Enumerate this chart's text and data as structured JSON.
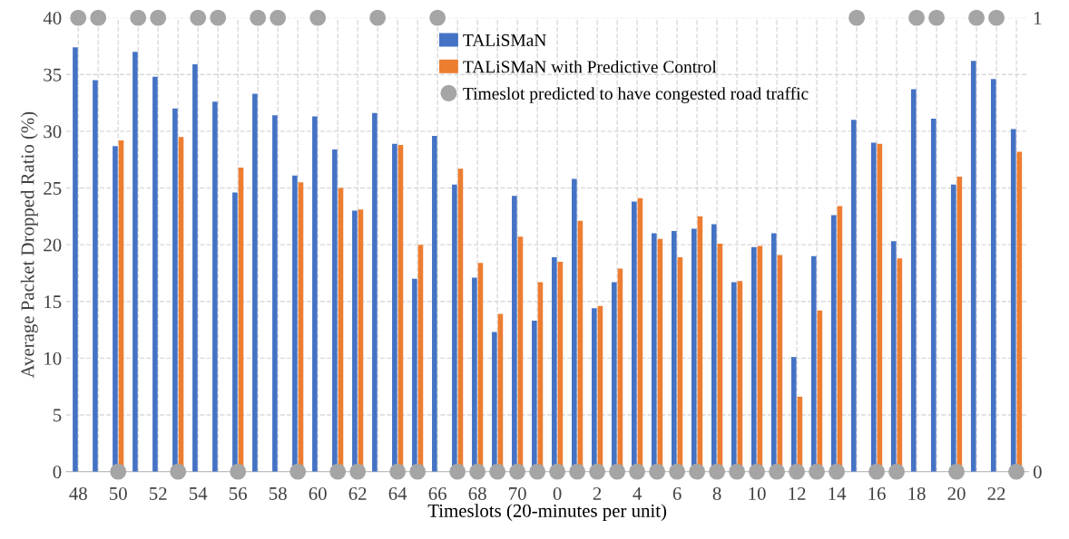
{
  "chart_data": {
    "type": "bar",
    "xlabel": "Timeslots (20-minutes per unit)",
    "ylabel": "Average Packet Dropped Ratio (%)",
    "categories": [
      "48",
      null,
      "50",
      null,
      "52",
      null,
      "54",
      null,
      "56",
      null,
      "58",
      null,
      "60",
      null,
      "62",
      null,
      "64",
      null,
      "66",
      null,
      "68",
      null,
      "70",
      null,
      "0",
      null,
      "2",
      null,
      "4",
      null,
      "6",
      null,
      "8",
      null,
      "10",
      null,
      "12",
      null,
      "14",
      null,
      "16",
      null,
      "18",
      null,
      "20",
      null,
      "22",
      null
    ],
    "series": [
      {
        "name": "TALiSMaN",
        "color": "#4472c4",
        "values": [
          37.4,
          34.5,
          28.7,
          37.0,
          34.8,
          32.0,
          35.9,
          32.6,
          24.6,
          33.3,
          31.4,
          26.1,
          31.3,
          28.4,
          23.0,
          31.6,
          28.9,
          17.0,
          29.6,
          25.3,
          17.1,
          12.3,
          24.3,
          13.3,
          18.9,
          25.8,
          14.4,
          16.7,
          23.8,
          21.0,
          21.2,
          21.4,
          21.8,
          16.7,
          19.8,
          21.0,
          10.1,
          19.0,
          22.6,
          31.0,
          29.0,
          20.3,
          33.7,
          31.1,
          25.3,
          36.2,
          34.6,
          30.2
        ]
      },
      {
        "name": "TALiSMaN with Predictive Control",
        "color": "#ed7d31",
        "values": [
          null,
          null,
          29.2,
          null,
          null,
          29.5,
          null,
          null,
          26.8,
          null,
          null,
          25.5,
          null,
          25.0,
          23.1,
          null,
          28.8,
          20.0,
          null,
          26.7,
          18.4,
          13.9,
          20.7,
          16.7,
          18.5,
          22.1,
          14.6,
          17.9,
          24.1,
          20.5,
          18.9,
          22.5,
          20.1,
          16.8,
          19.9,
          19.1,
          6.6,
          14.2,
          23.4,
          null,
          28.9,
          18.8,
          null,
          null,
          26.0,
          null,
          null,
          28.2
        ]
      },
      {
        "name": "Timeslot predicted to have congested road traffic",
        "type": "scatter",
        "axis": "y2",
        "color": "#a5a5a5",
        "marker": "circle",
        "values": [
          1,
          1,
          0,
          1,
          1,
          0,
          1,
          1,
          0,
          1,
          1,
          0,
          1,
          0,
          0,
          1,
          0,
          0,
          1,
          0,
          0,
          0,
          0,
          0,
          0,
          0,
          0,
          0,
          0,
          0,
          0,
          0,
          0,
          0,
          0,
          0,
          0,
          0,
          0,
          1,
          0,
          0,
          1,
          1,
          0,
          1,
          1,
          0
        ]
      }
    ],
    "ylim": [
      0,
      40
    ],
    "yticks": [
      0,
      5,
      10,
      15,
      20,
      25,
      30,
      35,
      40
    ],
    "y2lim": [
      0,
      1
    ],
    "y2ticks": [
      0,
      1
    ],
    "grid": true,
    "line_style": "dashed",
    "legend": "top"
  }
}
